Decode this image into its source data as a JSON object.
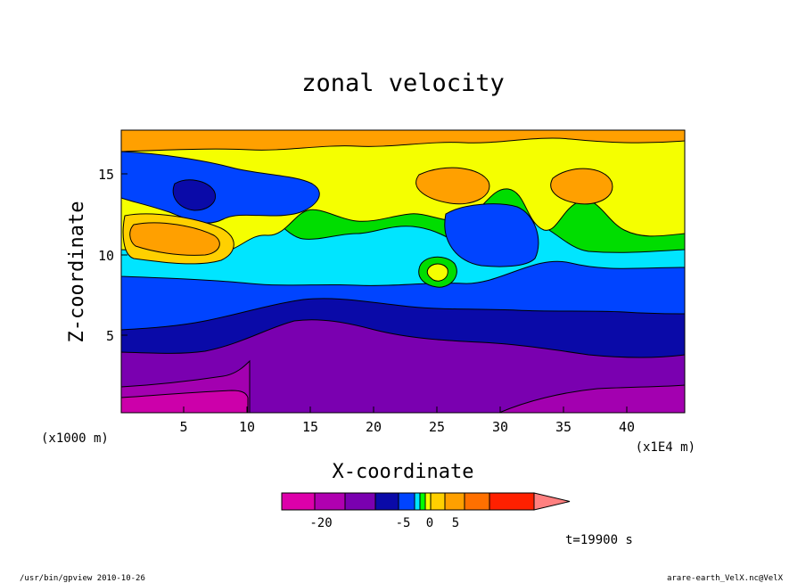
{
  "chart_data": {
    "type": "heatmap",
    "title": "zonal velocity",
    "xlabel": "X-coordinate",
    "ylabel": "Z-coordinate",
    "x_unit_left": "(x1000 m)",
    "x_unit_right": "(x1E4 m)",
    "xlim": [
      0,
      44.5
    ],
    "ylim": [
      0,
      17.5
    ],
    "xticks": [
      "5",
      "10",
      "15",
      "20",
      "25",
      "30",
      "35",
      "40"
    ],
    "yticks": [
      "5",
      "10",
      "15"
    ],
    "palette": [
      "#cc00aa",
      "#a300b0",
      "#7a00b0",
      "#0a0aa8",
      "#0044ff",
      "#00e5ff",
      "#00dd00",
      "#f5ff00",
      "#ffd000",
      "#ffa000",
      "#ff7000",
      "#ff2000"
    ],
    "colorbar": {
      "segments": [
        "#dd00aa",
        "#b000b0",
        "#7a00b0",
        "#0a0aa8",
        "#0044ff",
        "#00e5ff",
        "#00ff00",
        "#f5ff00",
        "#ffd000",
        "#ffa000",
        "#ff7000",
        "#ff2000"
      ],
      "arrow_color": "#ff8080",
      "labels": [
        "-20",
        "-5",
        "0",
        "5"
      ]
    },
    "time_label": "t=19900 s"
  },
  "footer": {
    "left": "/usr/bin/gpview  2010-10-26",
    "right": "arare-earth_VelX.nc@VelX"
  }
}
